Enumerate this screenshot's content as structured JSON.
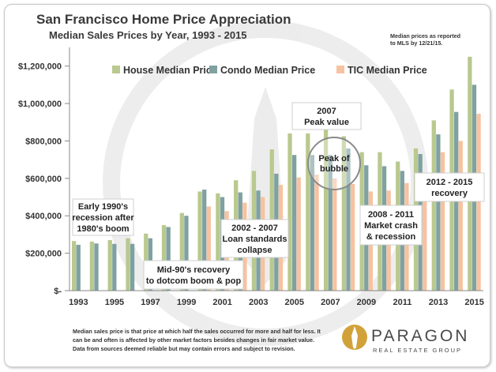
{
  "chart_data": {
    "type": "bar",
    "title": "San Francisco Home Price Appreciation",
    "subtitle": "Median Sales Prices by Year, 1993 - 2015",
    "source_note": [
      "Median prices as reported",
      "to MLS by 12/21/15."
    ],
    "x": [
      1993,
      1994,
      1995,
      1996,
      1997,
      1998,
      1999,
      2000,
      2001,
      2002,
      2003,
      2004,
      2005,
      2006,
      2007,
      2008,
      2009,
      2010,
      2011,
      2012,
      2013,
      2014,
      2015
    ],
    "x_tick_labels": [
      "1993",
      "1995",
      "1997",
      "1999",
      "2001",
      "2003",
      "2005",
      "2007",
      "2009",
      "2011",
      "2013",
      "2015"
    ],
    "y_tick_labels": [
      "$-",
      "$200,000",
      "$400,000",
      "$600,000",
      "$800,000",
      "$1,000,000",
      "$1,200,000"
    ],
    "ylim": [
      0,
      1300000
    ],
    "grid": false,
    "legend_position": "top",
    "series": [
      {
        "name": "House Median Price",
        "color": "#b9c98f",
        "values": [
          265000,
          262000,
          270000,
          280000,
          305000,
          350000,
          415000,
          530000,
          520000,
          590000,
          640000,
          755000,
          840000,
          840000,
          895000,
          825000,
          740000,
          740000,
          690000,
          760000,
          910000,
          1075000,
          1250000
        ]
      },
      {
        "name": "Condo Median Price",
        "color": "#7fa1a1",
        "values": [
          245000,
          252000,
          250000,
          250000,
          280000,
          340000,
          400000,
          540000,
          500000,
          525000,
          535000,
          625000,
          725000,
          725000,
          725000,
          760000,
          670000,
          665000,
          640000,
          730000,
          835000,
          955000,
          1100000
        ]
      },
      {
        "name": "TIC Median Price",
        "color": "#f7c2a0",
        "values": [
          null,
          null,
          null,
          null,
          null,
          null,
          null,
          450000,
          425000,
          470000,
          500000,
          565000,
          605000,
          620000,
          600000,
          570000,
          530000,
          535000,
          575000,
          625000,
          740000,
          800000,
          945000
        ]
      }
    ],
    "annotations": [
      {
        "id": "early-90s",
        "lines": [
          "Early 1990's",
          "recession after",
          "1980's boom"
        ]
      },
      {
        "id": "mid-90s",
        "lines": [
          "Mid-90's recovery",
          "to dotcom boom & pop"
        ]
      },
      {
        "id": "loan-collapse",
        "lines": [
          "2002 - 2007",
          "Loan standards",
          "collapse"
        ]
      },
      {
        "id": "peak-2007",
        "lines": [
          "2007",
          "Peak value"
        ]
      },
      {
        "id": "peak-bubble",
        "lines": [
          "Peak of",
          "bubble"
        ]
      },
      {
        "id": "crash-2008",
        "lines": [
          "2008 - 2011",
          "Market crash",
          "& recession"
        ]
      },
      {
        "id": "recovery-2012",
        "lines": [
          "2012 - 2015",
          "recovery"
        ]
      }
    ],
    "footnote": [
      "Median sales price is that price at which half the sales occurred for more and half for less. It",
      "can be and often is affected by other market factors besides changes in fair market value.",
      "Data from sources deemed reliable but may contain errors and subject to revision."
    ]
  },
  "brand": {
    "name": "PARAGON",
    "tagline": "REAL ESTATE GROUP",
    "color_dark": "#4a4a4a",
    "color_gold": "#d2a23a"
  }
}
